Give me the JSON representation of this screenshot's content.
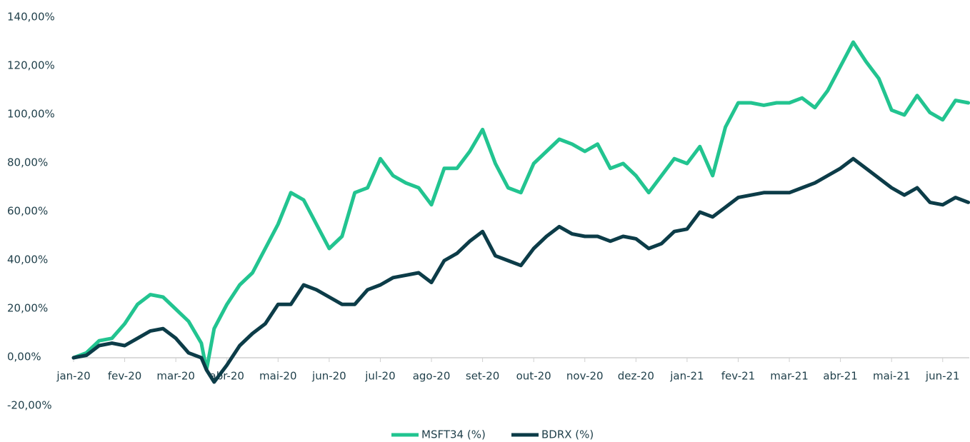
{
  "chart_data": {
    "type": "line",
    "x": [
      0,
      0.25,
      0.5,
      0.75,
      1,
      1.25,
      1.5,
      1.75,
      2,
      2.25,
      2.5,
      2.6,
      2.75,
      3,
      3.25,
      3.5,
      3.75,
      4,
      4.25,
      4.5,
      4.75,
      5,
      5.25,
      5.5,
      5.75,
      6,
      6.25,
      6.5,
      6.75,
      7,
      7.25,
      7.5,
      7.75,
      8,
      8.25,
      8.5,
      8.75,
      9,
      9.25,
      9.5,
      9.75,
      10,
      10.25,
      10.5,
      10.75,
      11,
      11.25,
      11.5,
      11.75,
      12,
      12.25,
      12.5,
      12.75,
      13,
      13.25,
      13.5,
      13.75,
      14,
      14.25,
      14.5,
      14.75,
      15,
      15.25,
      15.5,
      15.75,
      16,
      16.25,
      16.5,
      16.75,
      17,
      17.25,
      17.5
    ],
    "series": [
      {
        "name": "MSFT34 (%)",
        "color": "#22c490",
        "values": [
          0,
          2,
          7,
          8,
          14,
          22,
          26,
          25,
          20,
          15,
          6,
          -5,
          12,
          22,
          30,
          35,
          45,
          55,
          68,
          65,
          55,
          45,
          50,
          68,
          70,
          82,
          75,
          72,
          70,
          63,
          78,
          78,
          85,
          94,
          80,
          70,
          68,
          80,
          85,
          90,
          88,
          85,
          88,
          78,
          80,
          75,
          68,
          75,
          82,
          80,
          87,
          75,
          95,
          105,
          105,
          104,
          105,
          105,
          107,
          103,
          110,
          120,
          130,
          122,
          115,
          102,
          100,
          108,
          101,
          98,
          106,
          105
        ]
      },
      {
        "name": "BDRX (%)",
        "color": "#0c3c48",
        "values": [
          0,
          1,
          5,
          6,
          5,
          8,
          11,
          12,
          8,
          2,
          0,
          -5,
          -10,
          -3,
          5,
          10,
          14,
          22,
          22,
          30,
          28,
          25,
          22,
          22,
          28,
          30,
          33,
          34,
          35,
          31,
          40,
          43,
          48,
          52,
          42,
          40,
          38,
          45,
          50,
          54,
          51,
          50,
          50,
          48,
          50,
          49,
          45,
          47,
          52,
          53,
          60,
          58,
          62,
          66,
          67,
          68,
          68,
          68,
          70,
          72,
          75,
          78,
          82,
          78,
          74,
          70,
          67,
          70,
          64,
          63,
          66,
          64
        ]
      }
    ],
    "xlim": [
      0,
      17.52
    ],
    "xticks": [
      {
        "value": 0,
        "label": "jan-20"
      },
      {
        "value": 1,
        "label": "fev-20"
      },
      {
        "value": 2,
        "label": "mar-20"
      },
      {
        "value": 3,
        "label": "abr-20"
      },
      {
        "value": 4,
        "label": "mai-20"
      },
      {
        "value": 5,
        "label": "jun-20"
      },
      {
        "value": 6,
        "label": "jul-20"
      },
      {
        "value": 7,
        "label": "ago-20"
      },
      {
        "value": 8,
        "label": "set-20"
      },
      {
        "value": 9,
        "label": "out-20"
      },
      {
        "value": 10,
        "label": "nov-20"
      },
      {
        "value": 11,
        "label": "dez-20"
      },
      {
        "value": 12,
        "label": "jan-21"
      },
      {
        "value": 13,
        "label": "fev-21"
      },
      {
        "value": 14,
        "label": "mar-21"
      },
      {
        "value": 15,
        "label": "abr-21"
      },
      {
        "value": 16,
        "label": "mai-21"
      },
      {
        "value": 17,
        "label": "jun-21"
      }
    ],
    "ylim": [
      -20,
      140
    ],
    "yticks": [
      {
        "value": -20,
        "label": "-20,00%"
      },
      {
        "value": 0,
        "label": "0,00%"
      },
      {
        "value": 20,
        "label": "20,00%"
      },
      {
        "value": 40,
        "label": "40,00%"
      },
      {
        "value": 60,
        "label": "60,00%"
      },
      {
        "value": 80,
        "label": "80,00%"
      },
      {
        "value": 100,
        "label": "100,00%"
      },
      {
        "value": 120,
        "label": "120,00%"
      },
      {
        "value": 140,
        "label": "140,00%"
      }
    ],
    "grid": false,
    "legend": "bottom"
  }
}
